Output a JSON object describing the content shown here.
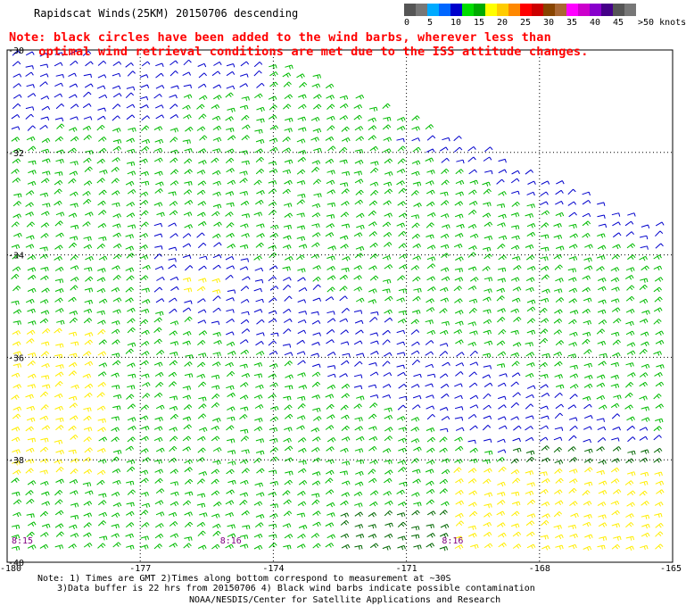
{
  "title": "Rapidscat Winds(25KM) 20150706 descending",
  "note_line1": "Note: black circles have been added to the wind barbs, wherever less than",
  "note_line2": "    optimal wind retrieval conditions are met due to the ISS attitude changes.",
  "colorbar": {
    "swatches": [
      "#555555",
      "#777777",
      "#00aaff",
      "#0066ff",
      "#0000cc",
      "#00dd00",
      "#00aa00",
      "#ffff00",
      "#ffcc00",
      "#ff8800",
      "#ff0000",
      "#cc0000",
      "#884400",
      "#aa6633",
      "#ff00ff",
      "#cc00cc",
      "#8800cc",
      "#440088"
    ],
    "labels": [
      "0",
      "5",
      "10",
      "15",
      "20",
      "25",
      "30",
      "35",
      "40",
      "45"
    ],
    "unit": ">50 knots"
  },
  "map": {
    "lat_labels": [
      "-30",
      "-32",
      "-34",
      "-36",
      "-38",
      "-40"
    ],
    "lon_labels": [
      "-180",
      "-177",
      "-174",
      "-171",
      "-168",
      "-165"
    ],
    "time_labels": [
      "8:15",
      "8:16",
      "8:16"
    ],
    "colors": {
      "blue": "#0000cc",
      "green": "#00bb00",
      "yellow": "#ffee00",
      "darkgreen": "#006600",
      "grid": "#000000"
    }
  },
  "footnote_line1": "Note: 1) Times are GMT 2)Times along bottom correspond to measurement at ~30S",
  "footnote_line2": "3)Data buffer is 22 hrs from 20150706 4) Black wind barbs indicate possible contamination",
  "credit": "NOAA/NESDIS/Center for Satellite Applications and Research"
}
